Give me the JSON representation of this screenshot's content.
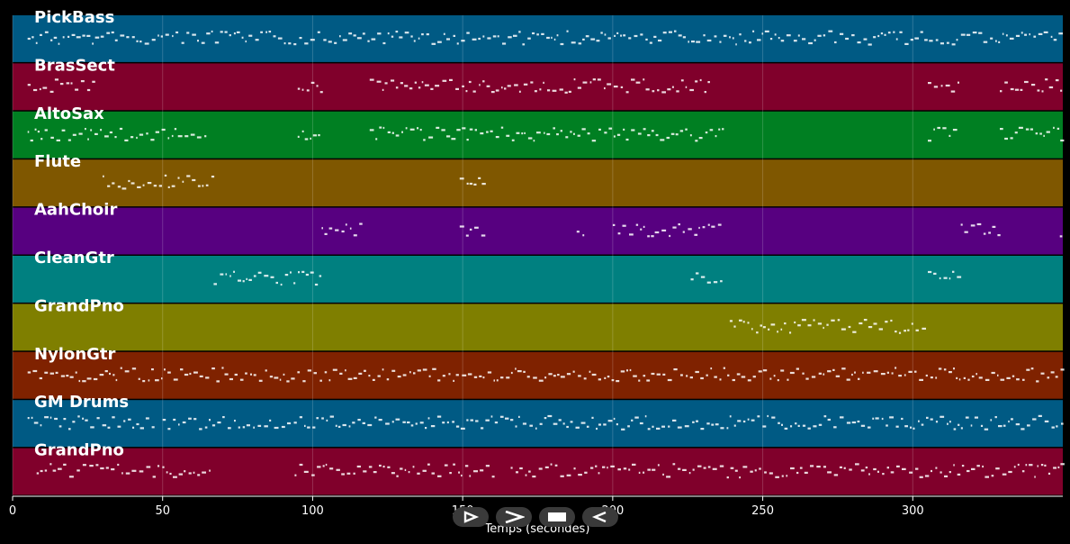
{
  "chart_data": {
    "type": "piano-roll",
    "xlabel": "Temps (secondes)",
    "xlim": [
      0,
      350
    ],
    "x_ticks": [
      0,
      50,
      100,
      150,
      200,
      250,
      300
    ],
    "grid": true,
    "tracks": [
      {
        "name": "PickBass",
        "color": "#005a84",
        "segments": [
          [
            5,
            350
          ]
        ]
      },
      {
        "name": "BrasSect",
        "color": "#80002b",
        "segments": [
          [
            5,
            28
          ],
          [
            95,
            103
          ],
          [
            119,
            160
          ],
          [
            161,
            232
          ],
          [
            305,
            315
          ],
          [
            329,
            350
          ]
        ]
      },
      {
        "name": "AltoSax",
        "color": "#007f22",
        "segments": [
          [
            5,
            64
          ],
          [
            95,
            103
          ],
          [
            119,
            160
          ],
          [
            161,
            237
          ],
          [
            305,
            315
          ],
          [
            329,
            350
          ]
        ]
      },
      {
        "name": "Flute",
        "color": "#7f5700",
        "segments": [
          [
            30,
            67
          ],
          [
            149,
            157
          ]
        ]
      },
      {
        "name": "AahChoir",
        "color": "#570080",
        "segments": [
          [
            103,
            117
          ],
          [
            149,
            157
          ],
          [
            188,
            190
          ],
          [
            200,
            236
          ],
          [
            316,
            329
          ],
          [
            349,
            350
          ]
        ]
      },
      {
        "name": "CleanGtr",
        "color": "#008080",
        "segments": [
          [
            67,
            103
          ],
          [
            226,
            237
          ],
          [
            305,
            316
          ]
        ]
      },
      {
        "name": "GrandPno",
        "color": "#7f7f00",
        "segments": [
          [
            239,
            305
          ]
        ]
      },
      {
        "name": "NylonGtr",
        "color": "#7f2200",
        "segments": [
          [
            5,
            350
          ]
        ]
      },
      {
        "name": "GM Drums",
        "color": "#005a84",
        "segments": [
          [
            5,
            48
          ],
          [
            50,
            350
          ]
        ]
      },
      {
        "name": "GrandPno",
        "color": "#80002b",
        "segments": [
          [
            8,
            66
          ],
          [
            94,
            161
          ],
          [
            166,
            350
          ]
        ]
      }
    ]
  },
  "controls": {
    "play_label": "play",
    "forward_label": "forward",
    "stop_label": "stop",
    "back_label": "back"
  }
}
